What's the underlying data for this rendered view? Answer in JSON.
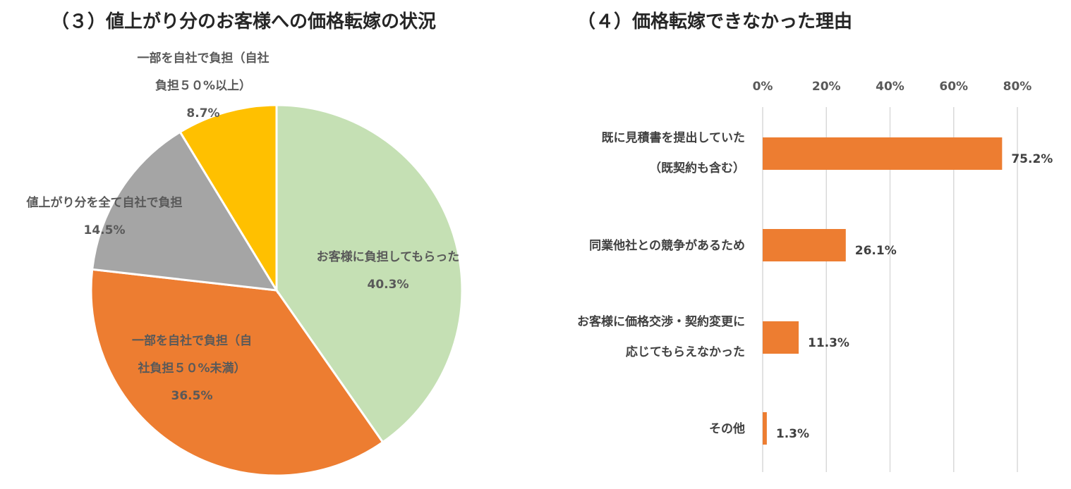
{
  "chart_data": [
    {
      "type": "pie",
      "title": "（３）値上がり分のお客様への価格転嫁の状況",
      "slices": [
        {
          "label_lines": [
            "お客様に負担してもらった"
          ],
          "value": 40.3,
          "value_label": "40.3%",
          "color": "#C5E0B4"
        },
        {
          "label_lines": [
            "一部を自社で負担（自",
            "社負担５０%未満）"
          ],
          "value": 36.5,
          "value_label": "36.5%",
          "color": "#ED7D31"
        },
        {
          "label_lines": [
            "値上がり分を全て自社で負担"
          ],
          "value": 14.5,
          "value_label": "14.5%",
          "color": "#A5A5A5"
        },
        {
          "label_lines": [
            "一部を自社で負担（自社",
            "負担５０%以上）"
          ],
          "value": 8.7,
          "value_label": "8.7%",
          "color": "#FFC000"
        }
      ]
    },
    {
      "type": "bar",
      "orientation": "horizontal",
      "title": "（４）価格転嫁できなかった理由",
      "categories": [
        [
          "既に見積書を提出していた",
          "（既契約も含む）"
        ],
        [
          "同業他社との競争があるため"
        ],
        [
          "お客様に価格交渉・契約変更に",
          "応じてもらえなかった"
        ],
        [
          "その他"
        ]
      ],
      "values": [
        75.2,
        26.1,
        11.3,
        1.3
      ],
      "value_labels": [
        "75.2%",
        "26.1%",
        "11.3%",
        "1.3%"
      ],
      "color": "#ED7D31",
      "xlim": [
        0,
        80
      ],
      "xticks": [
        "0%",
        "20%",
        "40%",
        "60%",
        "80%"
      ],
      "xtick_values": [
        0,
        20,
        40,
        60,
        80
      ],
      "grid": true
    }
  ]
}
